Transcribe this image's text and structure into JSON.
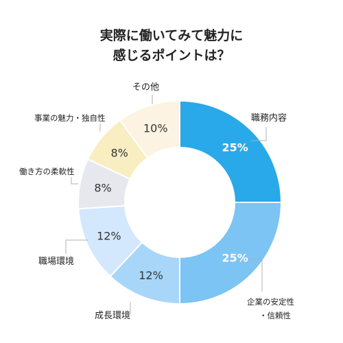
{
  "title_lines": [
    "実際に働いてみて魅力に",
    "感じるポイントは？"
  ],
  "chart_data": {
    "type": "pie",
    "title": "実際に働いてみて魅力に感じるポイントは？",
    "categories": [
      "職務内容",
      "企業の安定性・信頼性",
      "成長環境",
      "職場環境",
      "働き方の柔軟性",
      "事業の魅力・独自性",
      "その他"
    ],
    "values": [
      25,
      25,
      12,
      12,
      8,
      8,
      10
    ],
    "value_labels": [
      "25%",
      "25%",
      "12%",
      "12%",
      "8%",
      "8%",
      "10%"
    ],
    "label_lines": [
      [
        "職務内容"
      ],
      [
        "企業の安定性",
        "・信頼性"
      ],
      [
        "成長環境"
      ],
      [
        "職場環境"
      ],
      [
        "働き方の柔軟性"
      ],
      [
        "事業の魅力・独自性"
      ],
      [
        "その他"
      ]
    ],
    "colors": [
      "#29a8ea",
      "#7cc4f3",
      "#a8d6f8",
      "#d3e8fc",
      "#e6e8ee",
      "#f9edc2",
      "#fdf3e2"
    ],
    "value_label_colors": [
      "#ffffff",
      "#ffffff",
      "#333333",
      "#333333",
      "#333333",
      "#333333",
      "#333333"
    ],
    "donut": true,
    "start_angle": "12 o'clock",
    "direction": "clockwise"
  }
}
